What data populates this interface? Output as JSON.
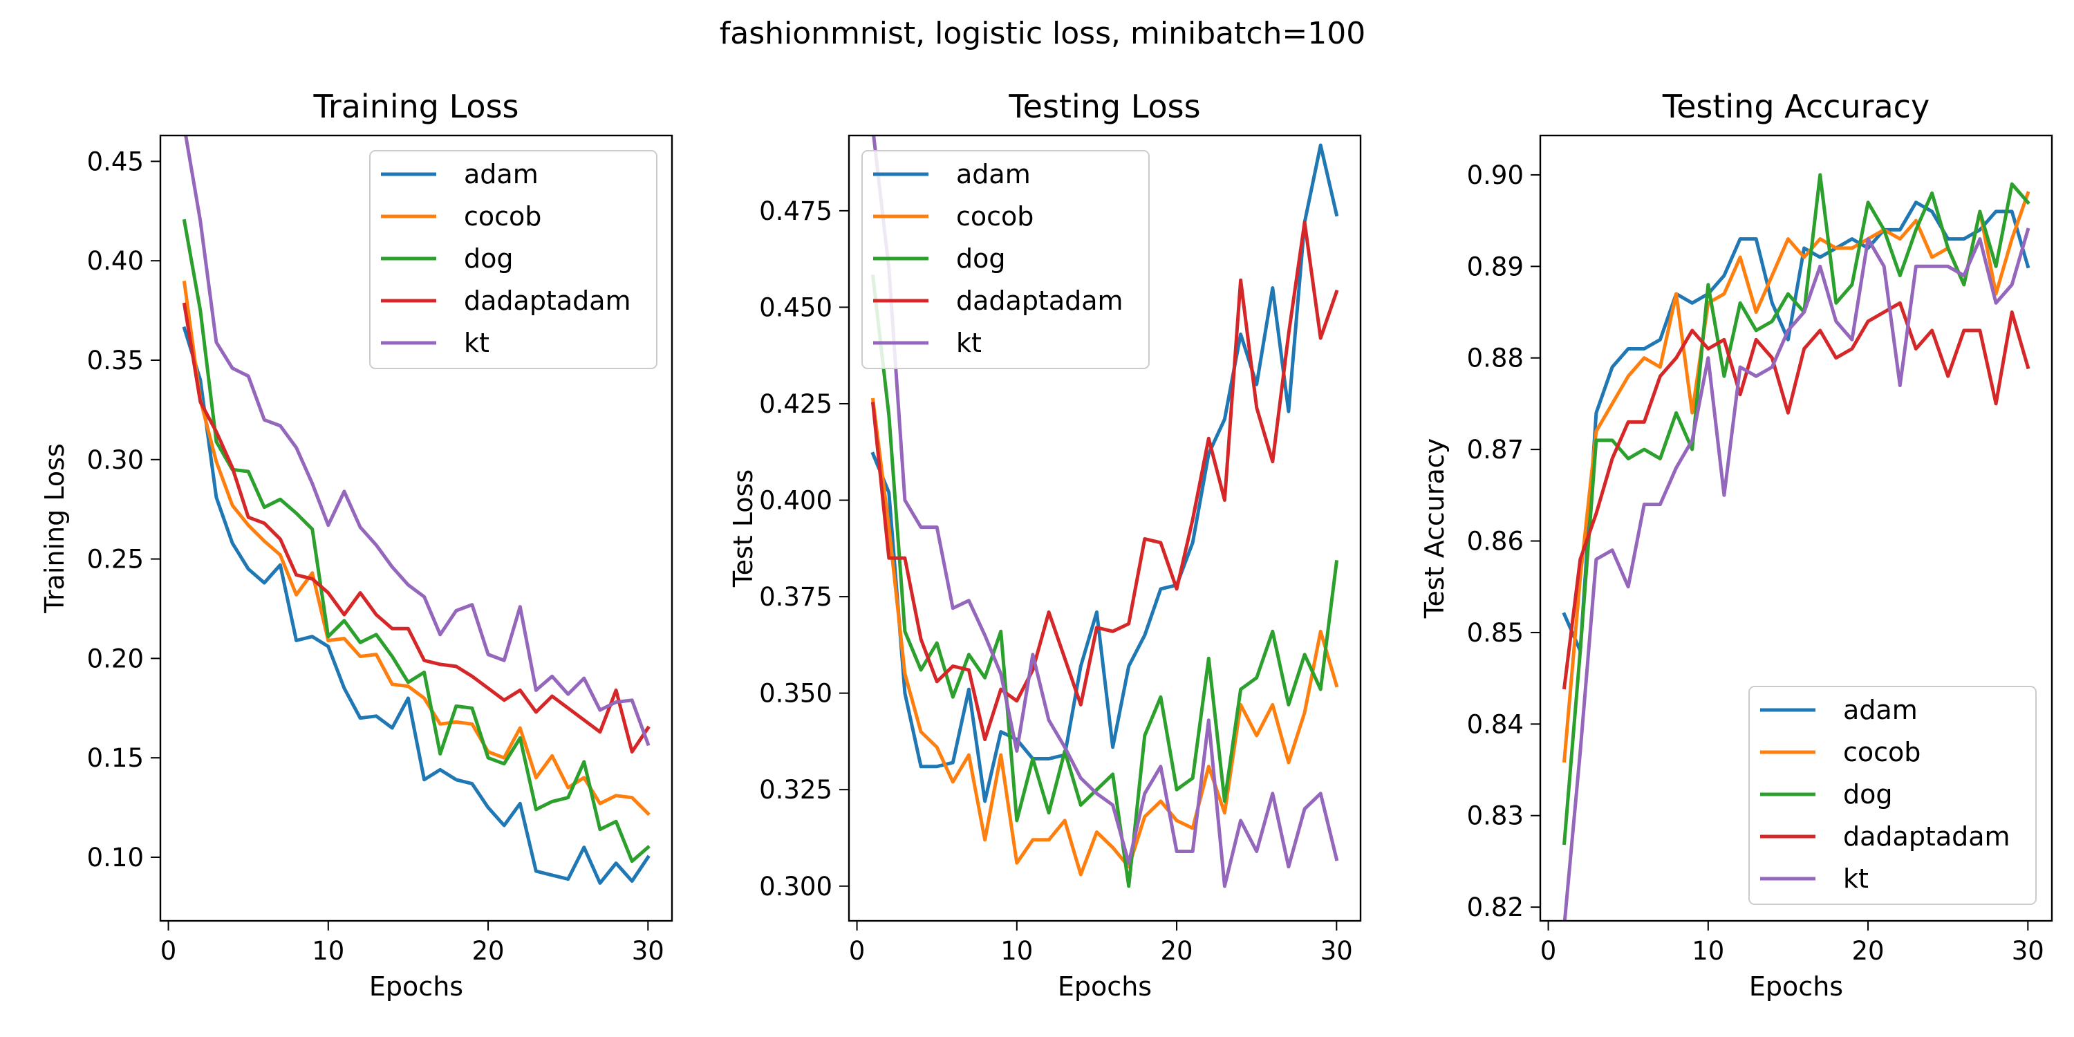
{
  "suptitle": "fashionmnist, logistic loss, minibatch=100",
  "colors": {
    "adam": "#1f77b4",
    "cocob": "#ff7f0e",
    "dog": "#2ca02c",
    "dadaptadam": "#d62728",
    "kt": "#9467bd"
  },
  "chart_data": [
    {
      "type": "line",
      "title": "Training Loss",
      "xlabel": "Epochs",
      "ylabel": "Training Loss",
      "xlim": [
        -0.5,
        31.5
      ],
      "ylim": [
        0.068,
        0.463
      ],
      "xticks": [
        0,
        10,
        20,
        30
      ],
      "yticks": [
        0.1,
        0.15,
        0.2,
        0.25,
        0.3,
        0.35,
        0.4,
        0.45
      ],
      "ytick_labels": [
        "0.10",
        "0.15",
        "0.20",
        "0.25",
        "0.30",
        "0.35",
        "0.40",
        "0.45"
      ],
      "grid": false,
      "legend_position": "upper-right",
      "x": [
        1,
        2,
        3,
        4,
        5,
        6,
        7,
        8,
        9,
        10,
        11,
        12,
        13,
        14,
        15,
        16,
        17,
        18,
        19,
        20,
        21,
        22,
        23,
        24,
        25,
        26,
        27,
        28,
        29,
        30
      ],
      "series": [
        {
          "name": "adam",
          "values": [
            0.366,
            0.34,
            0.281,
            0.258,
            0.245,
            0.238,
            0.247,
            0.209,
            0.211,
            0.206,
            0.185,
            0.17,
            0.171,
            0.165,
            0.18,
            0.139,
            0.144,
            0.139,
            0.137,
            0.125,
            0.116,
            0.127,
            0.093,
            0.091,
            0.089,
            0.105,
            0.087,
            0.097,
            0.088,
            0.1
          ]
        },
        {
          "name": "cocob",
          "values": [
            0.389,
            0.33,
            0.299,
            0.277,
            0.267,
            0.259,
            0.252,
            0.232,
            0.243,
            0.209,
            0.21,
            0.201,
            0.202,
            0.187,
            0.186,
            0.18,
            0.167,
            0.168,
            0.167,
            0.153,
            0.15,
            0.165,
            0.14,
            0.151,
            0.135,
            0.14,
            0.127,
            0.131,
            0.13,
            0.122
          ]
        },
        {
          "name": "dog",
          "values": [
            0.42,
            0.375,
            0.309,
            0.295,
            0.294,
            0.276,
            0.28,
            0.273,
            0.265,
            0.211,
            0.219,
            0.208,
            0.212,
            0.201,
            0.188,
            0.193,
            0.152,
            0.176,
            0.175,
            0.15,
            0.147,
            0.16,
            0.124,
            0.128,
            0.13,
            0.148,
            0.114,
            0.118,
            0.098,
            0.105
          ]
        },
        {
          "name": "dadaptadam",
          "values": [
            0.378,
            0.329,
            0.314,
            0.296,
            0.271,
            0.268,
            0.26,
            0.242,
            0.24,
            0.233,
            0.222,
            0.233,
            0.222,
            0.215,
            0.215,
            0.199,
            0.197,
            0.196,
            0.191,
            0.185,
            0.179,
            0.184,
            0.173,
            0.181,
            0.175,
            0.169,
            0.163,
            0.184,
            0.153,
            0.165
          ]
        },
        {
          "name": "kt",
          "values": [
            0.467,
            0.42,
            0.359,
            0.346,
            0.342,
            0.32,
            0.317,
            0.306,
            0.288,
            0.267,
            0.284,
            0.266,
            0.257,
            0.246,
            0.237,
            0.231,
            0.212,
            0.224,
            0.227,
            0.202,
            0.199,
            0.226,
            0.184,
            0.191,
            0.182,
            0.19,
            0.174,
            0.178,
            0.179,
            0.157
          ]
        }
      ]
    },
    {
      "type": "line",
      "title": "Testing Loss",
      "xlabel": "Epochs",
      "ylabel": "Test Loss",
      "xlim": [
        -0.5,
        31.5
      ],
      "ylim": [
        0.291,
        0.4945
      ],
      "xticks": [
        0,
        10,
        20,
        30
      ],
      "yticks": [
        0.3,
        0.325,
        0.35,
        0.375,
        0.4,
        0.425,
        0.45,
        0.475
      ],
      "ytick_labels": [
        "0.300",
        "0.325",
        "0.350",
        "0.375",
        "0.400",
        "0.425",
        "0.450",
        "0.475"
      ],
      "grid": false,
      "legend_position": "upper-left",
      "x": [
        1,
        2,
        3,
        4,
        5,
        6,
        7,
        8,
        9,
        10,
        11,
        12,
        13,
        14,
        15,
        16,
        17,
        18,
        19,
        20,
        21,
        22,
        23,
        24,
        25,
        26,
        27,
        28,
        29,
        30
      ],
      "series": [
        {
          "name": "adam",
          "values": [
            0.412,
            0.402,
            0.35,
            0.331,
            0.331,
            0.332,
            0.351,
            0.322,
            0.34,
            0.338,
            0.333,
            0.333,
            0.334,
            0.357,
            0.371,
            0.336,
            0.357,
            0.365,
            0.377,
            0.378,
            0.389,
            0.412,
            0.421,
            0.443,
            0.43,
            0.455,
            0.423,
            0.472,
            0.492,
            0.474
          ]
        },
        {
          "name": "cocob",
          "values": [
            0.426,
            0.393,
            0.355,
            0.34,
            0.336,
            0.327,
            0.334,
            0.312,
            0.334,
            0.306,
            0.312,
            0.312,
            0.317,
            0.303,
            0.314,
            0.31,
            0.305,
            0.318,
            0.322,
            0.317,
            0.315,
            0.331,
            0.319,
            0.347,
            0.339,
            0.347,
            0.332,
            0.345,
            0.366,
            0.352
          ]
        },
        {
          "name": "dog",
          "values": [
            0.458,
            0.422,
            0.366,
            0.356,
            0.363,
            0.349,
            0.36,
            0.354,
            0.366,
            0.317,
            0.333,
            0.319,
            0.335,
            0.321,
            0.325,
            0.329,
            0.3,
            0.339,
            0.349,
            0.325,
            0.328,
            0.359,
            0.322,
            0.351,
            0.354,
            0.366,
            0.347,
            0.36,
            0.351,
            0.384
          ]
        },
        {
          "name": "dadaptadam",
          "values": [
            0.425,
            0.385,
            0.385,
            0.364,
            0.353,
            0.357,
            0.356,
            0.338,
            0.351,
            0.348,
            0.356,
            0.371,
            0.359,
            0.347,
            0.367,
            0.366,
            0.368,
            0.39,
            0.389,
            0.377,
            0.395,
            0.416,
            0.4,
            0.457,
            0.424,
            0.41,
            0.443,
            0.472,
            0.442,
            0.454
          ]
        },
        {
          "name": "kt",
          "values": [
            0.496,
            0.46,
            0.4,
            0.393,
            0.393,
            0.372,
            0.374,
            0.365,
            0.355,
            0.335,
            0.36,
            0.343,
            0.336,
            0.328,
            0.324,
            0.321,
            0.306,
            0.324,
            0.331,
            0.309,
            0.309,
            0.343,
            0.3,
            0.317,
            0.309,
            0.324,
            0.305,
            0.32,
            0.324,
            0.307
          ]
        }
      ]
    },
    {
      "type": "line",
      "title": "Testing Accuracy",
      "xlabel": "Epochs",
      "ylabel": "Test Accuracy",
      "xlim": [
        -0.5,
        31.5
      ],
      "ylim": [
        0.8185,
        0.9043
      ],
      "xticks": [
        0,
        10,
        20,
        30
      ],
      "yticks": [
        0.82,
        0.83,
        0.84,
        0.85,
        0.86,
        0.87,
        0.88,
        0.89,
        0.9
      ],
      "ytick_labels": [
        "0.82",
        "0.83",
        "0.84",
        "0.85",
        "0.86",
        "0.87",
        "0.88",
        "0.89",
        "0.90"
      ],
      "grid": false,
      "legend_position": "lower-right",
      "x": [
        1,
        2,
        3,
        4,
        5,
        6,
        7,
        8,
        9,
        10,
        11,
        12,
        13,
        14,
        15,
        16,
        17,
        18,
        19,
        20,
        21,
        22,
        23,
        24,
        25,
        26,
        27,
        28,
        29,
        30
      ],
      "series": [
        {
          "name": "adam",
          "values": [
            0.852,
            0.848,
            0.874,
            0.879,
            0.881,
            0.881,
            0.882,
            0.887,
            0.886,
            0.887,
            0.889,
            0.893,
            0.893,
            0.886,
            0.882,
            0.892,
            0.891,
            0.892,
            0.893,
            0.892,
            0.894,
            0.894,
            0.897,
            0.896,
            0.893,
            0.893,
            0.894,
            0.896,
            0.896,
            0.89
          ]
        },
        {
          "name": "cocob",
          "values": [
            0.836,
            0.856,
            0.872,
            0.875,
            0.878,
            0.88,
            0.879,
            0.887,
            0.874,
            0.886,
            0.887,
            0.891,
            0.885,
            0.889,
            0.893,
            0.891,
            0.893,
            0.892,
            0.892,
            0.893,
            0.894,
            0.893,
            0.895,
            0.891,
            0.892,
            0.888,
            0.896,
            0.887,
            0.893,
            0.898
          ]
        },
        {
          "name": "dog",
          "values": [
            0.827,
            0.848,
            0.871,
            0.871,
            0.869,
            0.87,
            0.869,
            0.874,
            0.87,
            0.888,
            0.878,
            0.886,
            0.883,
            0.884,
            0.887,
            0.885,
            0.9,
            0.886,
            0.888,
            0.897,
            0.894,
            0.889,
            0.894,
            0.898,
            0.892,
            0.888,
            0.896,
            0.89,
            0.899,
            0.897
          ]
        },
        {
          "name": "dadaptadam",
          "values": [
            0.844,
            0.858,
            0.863,
            0.869,
            0.873,
            0.873,
            0.878,
            0.88,
            0.883,
            0.881,
            0.882,
            0.876,
            0.882,
            0.88,
            0.874,
            0.881,
            0.883,
            0.88,
            0.881,
            0.884,
            0.885,
            0.886,
            0.881,
            0.883,
            0.878,
            0.883,
            0.883,
            0.875,
            0.885,
            0.879
          ]
        },
        {
          "name": "kt",
          "values": [
            0.818,
            0.837,
            0.858,
            0.859,
            0.855,
            0.864,
            0.864,
            0.868,
            0.871,
            0.88,
            0.865,
            0.879,
            0.878,
            0.879,
            0.883,
            0.885,
            0.89,
            0.884,
            0.882,
            0.893,
            0.89,
            0.877,
            0.89,
            0.89,
            0.89,
            0.889,
            0.893,
            0.886,
            0.888,
            0.894
          ]
        }
      ]
    }
  ]
}
